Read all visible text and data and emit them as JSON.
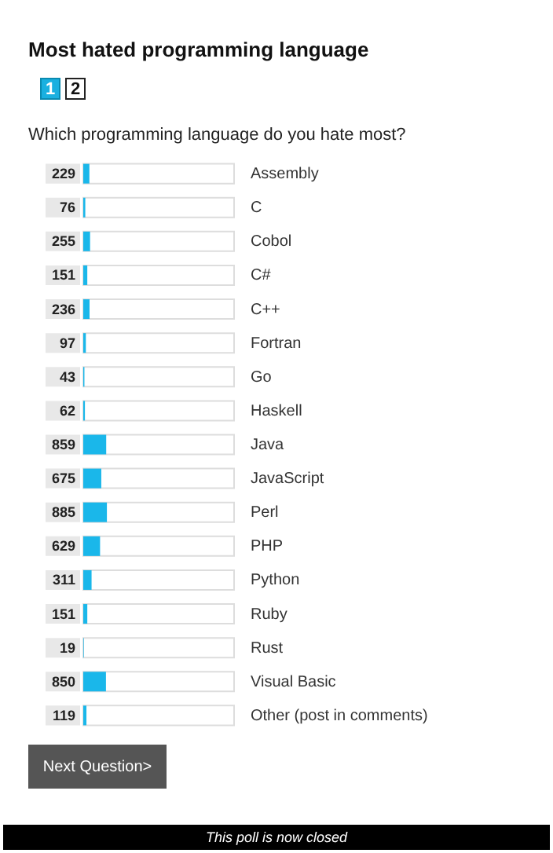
{
  "chart_data": {
    "type": "bar",
    "orientation": "horizontal",
    "title": "Most hated programming language",
    "subtitle": "Which programming language do you hate most?",
    "categories": [
      "Assembly",
      "C",
      "Cobol",
      "C#",
      "C++",
      "Fortran",
      "Go",
      "Haskell",
      "Java",
      "JavaScript",
      "Perl",
      "PHP",
      "Python",
      "Ruby",
      "Rust",
      "Visual Basic",
      "Other (post in comments)"
    ],
    "values": [
      229,
      76,
      255,
      151,
      236,
      97,
      43,
      62,
      859,
      675,
      885,
      629,
      311,
      151,
      19,
      850,
      119
    ],
    "color": "#1ab7ea",
    "xlim": [
      0,
      5647
    ],
    "data_labels": true,
    "tick_labels": "y",
    "annotations": [
      "1",
      "2",
      "Next Question>",
      "This poll is now closed"
    ]
  }
}
